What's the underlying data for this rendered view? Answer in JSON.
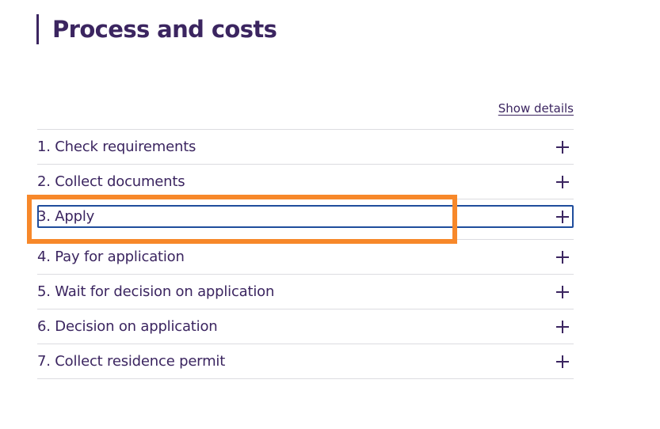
{
  "page": {
    "title": "Process and costs",
    "show_details_label": "Show details"
  },
  "steps": [
    {
      "label": "1. Check requirements"
    },
    {
      "label": "2. Collect documents"
    },
    {
      "label": "3. Apply"
    },
    {
      "label": "4. Pay for application"
    },
    {
      "label": "5. Wait for decision on application"
    },
    {
      "label": "6. Decision on application"
    },
    {
      "label": "7. Collect residence permit"
    }
  ],
  "icons": {
    "expand": "plus-icon"
  },
  "colors": {
    "text": "#3b2560",
    "divider": "#dcdce0",
    "focus_ring": "#1f4d9c",
    "annotation_highlight": "#f7882a"
  }
}
